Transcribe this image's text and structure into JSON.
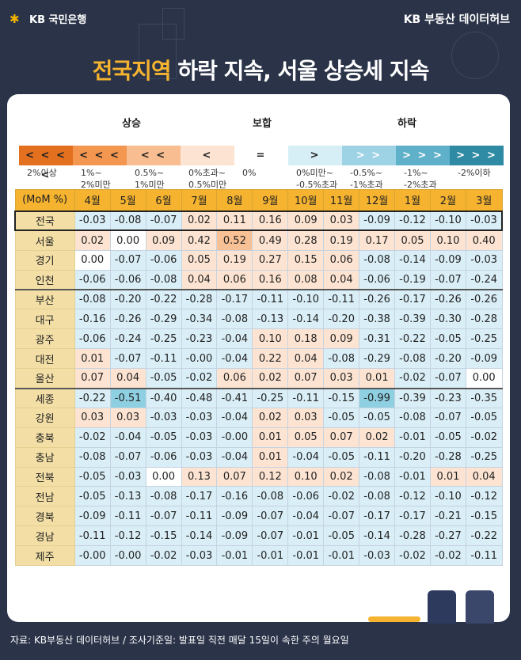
{
  "header": {
    "bank": "KB 국민은행",
    "brand": "KB 부동산 데이터허브",
    "title_highlight": "전국지역",
    "title_rest": " 하락 지속, 서울 상승세 지속"
  },
  "legend": {
    "up_label": "상승",
    "flat_label": "보합",
    "down_label": "하락",
    "boxes": [
      {
        "symbol": "< < < <",
        "label": "2%이상",
        "color": "#e3701e"
      },
      {
        "symbol": "< < <",
        "label": "1%~\n2%미만",
        "color": "#f3964f"
      },
      {
        "symbol": "< <",
        "label": "0.5%~\n1%미만",
        "color": "#f8bd90"
      },
      {
        "symbol": "<",
        "label": "0%초과~\n0.5%미만",
        "color": "#fde3d1"
      },
      {
        "symbol": "=",
        "label": "0%",
        "color": "#ffffff"
      },
      {
        "symbol": ">",
        "label": "0%미만~\n-0.5%초과",
        "color": "#d6eef6"
      },
      {
        "symbol": "> >",
        "label": "-0.5%~\n-1%초과",
        "color": "#9dd3e5"
      },
      {
        "symbol": "> > >",
        "label": "-1%~\n-2%초과",
        "color": "#5fb0c9"
      },
      {
        "symbol": "> > > >",
        "label": "-2%이하",
        "color": "#2f8aa3"
      }
    ]
  },
  "table": {
    "corner": "(MoM %)",
    "months": [
      "4월",
      "5월",
      "6월",
      "7월",
      "8월",
      "9월",
      "10월",
      "11월",
      "12월",
      "1월",
      "2월",
      "3월"
    ],
    "rows": [
      {
        "region": "전국",
        "values": [
          "-0.03",
          "-0.08",
          "-0.07",
          "0.02",
          "0.11",
          "0.16",
          "0.09",
          "0.03",
          "-0.09",
          "-0.12",
          "-0.10",
          "-0.03"
        ]
      },
      {
        "region": "서울",
        "values": [
          "0.02",
          "0.00",
          "0.09",
          "0.42",
          "0.52",
          "0.49",
          "0.28",
          "0.19",
          "0.17",
          "0.05",
          "0.10",
          "0.40"
        ]
      },
      {
        "region": "경기",
        "values": [
          "0.00",
          "-0.07",
          "-0.06",
          "0.05",
          "0.19",
          "0.27",
          "0.15",
          "0.06",
          "-0.08",
          "-0.14",
          "-0.09",
          "-0.03"
        ]
      },
      {
        "region": "인천",
        "values": [
          "-0.06",
          "-0.06",
          "-0.08",
          "0.04",
          "0.06",
          "0.16",
          "0.08",
          "0.04",
          "-0.06",
          "-0.19",
          "-0.07",
          "-0.24"
        ]
      },
      {
        "region": "부산",
        "values": [
          "-0.08",
          "-0.20",
          "-0.22",
          "-0.28",
          "-0.17",
          "-0.11",
          "-0.10",
          "-0.11",
          "-0.26",
          "-0.17",
          "-0.26",
          "-0.26"
        ]
      },
      {
        "region": "대구",
        "values": [
          "-0.16",
          "-0.26",
          "-0.29",
          "-0.34",
          "-0.08",
          "-0.13",
          "-0.14",
          "-0.20",
          "-0.38",
          "-0.39",
          "-0.30",
          "-0.28"
        ]
      },
      {
        "region": "광주",
        "values": [
          "-0.06",
          "-0.24",
          "-0.25",
          "-0.23",
          "-0.04",
          "0.10",
          "0.18",
          "0.09",
          "-0.31",
          "-0.22",
          "-0.05",
          "-0.25"
        ]
      },
      {
        "region": "대전",
        "values": [
          "0.01",
          "-0.07",
          "-0.11",
          "-0.00",
          "-0.04",
          "0.22",
          "0.04",
          "-0.08",
          "-0.29",
          "-0.08",
          "-0.20",
          "-0.09"
        ]
      },
      {
        "region": "울산",
        "values": [
          "0.07",
          "0.04",
          "-0.05",
          "-0.02",
          "0.06",
          "0.02",
          "0.07",
          "0.03",
          "0.01",
          "-0.02",
          "-0.07",
          "0.00"
        ]
      },
      {
        "region": "세종",
        "values": [
          "-0.22",
          "-0.51",
          "-0.40",
          "-0.48",
          "-0.41",
          "-0.25",
          "-0.11",
          "-0.15",
          "-0.99",
          "-0.39",
          "-0.23",
          "-0.35"
        ]
      },
      {
        "region": "강원",
        "values": [
          "0.03",
          "0.03",
          "-0.03",
          "-0.03",
          "-0.04",
          "0.02",
          "0.03",
          "-0.05",
          "-0.05",
          "-0.08",
          "-0.07",
          "-0.05"
        ]
      },
      {
        "region": "충북",
        "values": [
          "-0.02",
          "-0.04",
          "-0.05",
          "-0.03",
          "-0.00",
          "0.01",
          "0.05",
          "0.07",
          "0.02",
          "-0.01",
          "-0.05",
          "-0.02"
        ]
      },
      {
        "region": "충남",
        "values": [
          "-0.08",
          "-0.07",
          "-0.06",
          "-0.03",
          "-0.04",
          "0.01",
          "-0.04",
          "-0.05",
          "-0.11",
          "-0.20",
          "-0.28",
          "-0.25"
        ]
      },
      {
        "region": "전북",
        "values": [
          "-0.05",
          "-0.03",
          "0.00",
          "0.13",
          "0.07",
          "0.12",
          "0.10",
          "0.02",
          "-0.08",
          "-0.01",
          "0.01",
          "0.04"
        ]
      },
      {
        "region": "전남",
        "values": [
          "-0.05",
          "-0.13",
          "-0.08",
          "-0.17",
          "-0.16",
          "-0.08",
          "-0.06",
          "-0.02",
          "-0.08",
          "-0.12",
          "-0.10",
          "-0.12"
        ]
      },
      {
        "region": "경북",
        "values": [
          "-0.09",
          "-0.11",
          "-0.07",
          "-0.11",
          "-0.09",
          "-0.07",
          "-0.04",
          "-0.07",
          "-0.17",
          "-0.17",
          "-0.21",
          "-0.15"
        ]
      },
      {
        "region": "경남",
        "values": [
          "-0.11",
          "-0.12",
          "-0.15",
          "-0.14",
          "-0.09",
          "-0.07",
          "-0.01",
          "-0.05",
          "-0.14",
          "-0.28",
          "-0.27",
          "-0.22"
        ]
      },
      {
        "region": "제주",
        "values": [
          "-0.00",
          "-0.00",
          "-0.02",
          "-0.03",
          "-0.01",
          "-0.01",
          "-0.01",
          "-0.01",
          "-0.03",
          "-0.02",
          "-0.02",
          "-0.11"
        ]
      }
    ]
  },
  "footer": {
    "source": "자료: KB부동산 데이터허브 / 조사기준일: 발표일 직전 매달 15일이 속한 주의 월요일"
  }
}
